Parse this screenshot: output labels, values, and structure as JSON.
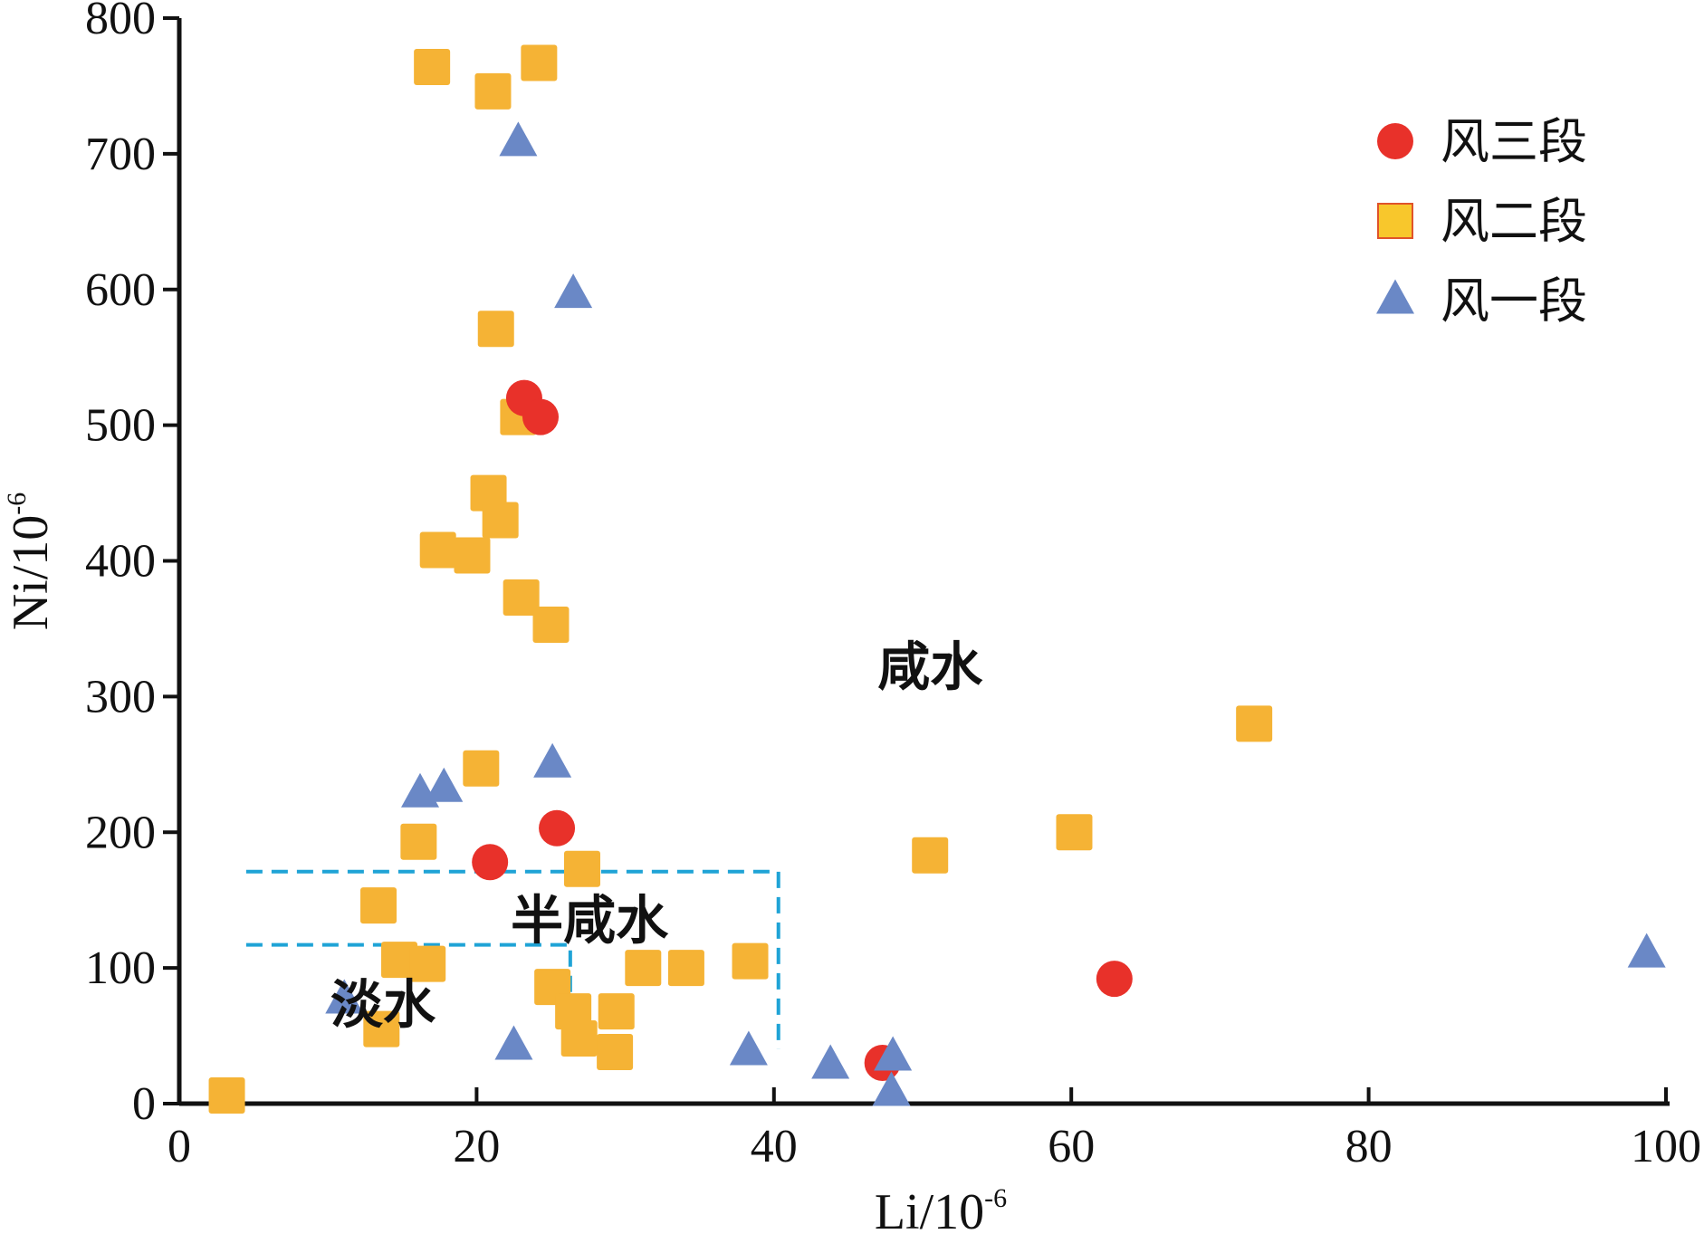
{
  "chart_data": {
    "type": "scatter",
    "title": "",
    "xlabel": "Li/10",
    "xlabel_sup": "-6",
    "ylabel": "Ni/10",
    "ylabel_sup": "-6",
    "xlim": [
      0,
      100
    ],
    "ylim": [
      0,
      800
    ],
    "xticks": [
      0,
      20,
      40,
      60,
      80,
      100
    ],
    "yticks": [
      0,
      100,
      200,
      300,
      400,
      500,
      600,
      700,
      800
    ],
    "grid": false,
    "legend_position": "top-right",
    "series": [
      {
        "name": "风三段",
        "marker": "circle",
        "color": "#e8312a",
        "points": [
          [
            23.2,
            520
          ],
          [
            24.3,
            506
          ],
          [
            25.4,
            203
          ],
          [
            20.9,
            178
          ],
          [
            62.9,
            92
          ],
          [
            47.3,
            30
          ]
        ]
      },
      {
        "name": "风二段",
        "marker": "square",
        "color": "#f5b335",
        "points": [
          [
            17.0,
            764
          ],
          [
            24.2,
            767
          ],
          [
            21.1,
            746
          ],
          [
            21.3,
            571
          ],
          [
            22.8,
            506
          ],
          [
            20.8,
            450
          ],
          [
            21.6,
            430
          ],
          [
            17.4,
            408
          ],
          [
            19.7,
            404
          ],
          [
            23.0,
            373
          ],
          [
            25.0,
            353
          ],
          [
            20.3,
            247
          ],
          [
            16.1,
            193
          ],
          [
            27.1,
            173
          ],
          [
            13.4,
            146
          ],
          [
            14.8,
            106
          ],
          [
            16.7,
            103
          ],
          [
            31.2,
            100
          ],
          [
            34.1,
            100
          ],
          [
            38.4,
            105
          ],
          [
            25.1,
            86
          ],
          [
            26.5,
            68
          ],
          [
            29.4,
            68
          ],
          [
            26.9,
            48
          ],
          [
            29.3,
            38
          ],
          [
            13.6,
            55
          ],
          [
            3.2,
            6
          ],
          [
            50.5,
            183
          ],
          [
            60.2,
            200
          ],
          [
            72.3,
            280
          ]
        ]
      },
      {
        "name": "风一段",
        "marker": "triangle",
        "color": "#6a88c6",
        "points": [
          [
            22.8,
            708
          ],
          [
            26.5,
            596
          ],
          [
            25.1,
            250
          ],
          [
            16.2,
            228
          ],
          [
            17.8,
            232
          ],
          [
            11.1,
            76
          ],
          [
            22.5,
            42
          ],
          [
            38.3,
            38
          ],
          [
            43.8,
            28
          ],
          [
            48.0,
            34
          ],
          [
            47.9,
            8
          ],
          [
            98.7,
            110
          ]
        ]
      }
    ],
    "region_boxes": [
      {
        "label": "semi-saline",
        "x0": 4.5,
        "x1": 40.3,
        "y0": 40,
        "y1": 171,
        "color": "#1fa3d6"
      },
      {
        "label": "fresh",
        "x0": 4.5,
        "x1": 26.3,
        "y0": 40,
        "y1": 117,
        "color": "#1fa3d6"
      }
    ],
    "annotations": [
      {
        "text": "咸水",
        "x": 50.5,
        "y": 322
      },
      {
        "text": "半咸水",
        "x": 27.6,
        "y": 135
      },
      {
        "text": "淡水",
        "x": 13.7,
        "y": 73
      }
    ]
  }
}
